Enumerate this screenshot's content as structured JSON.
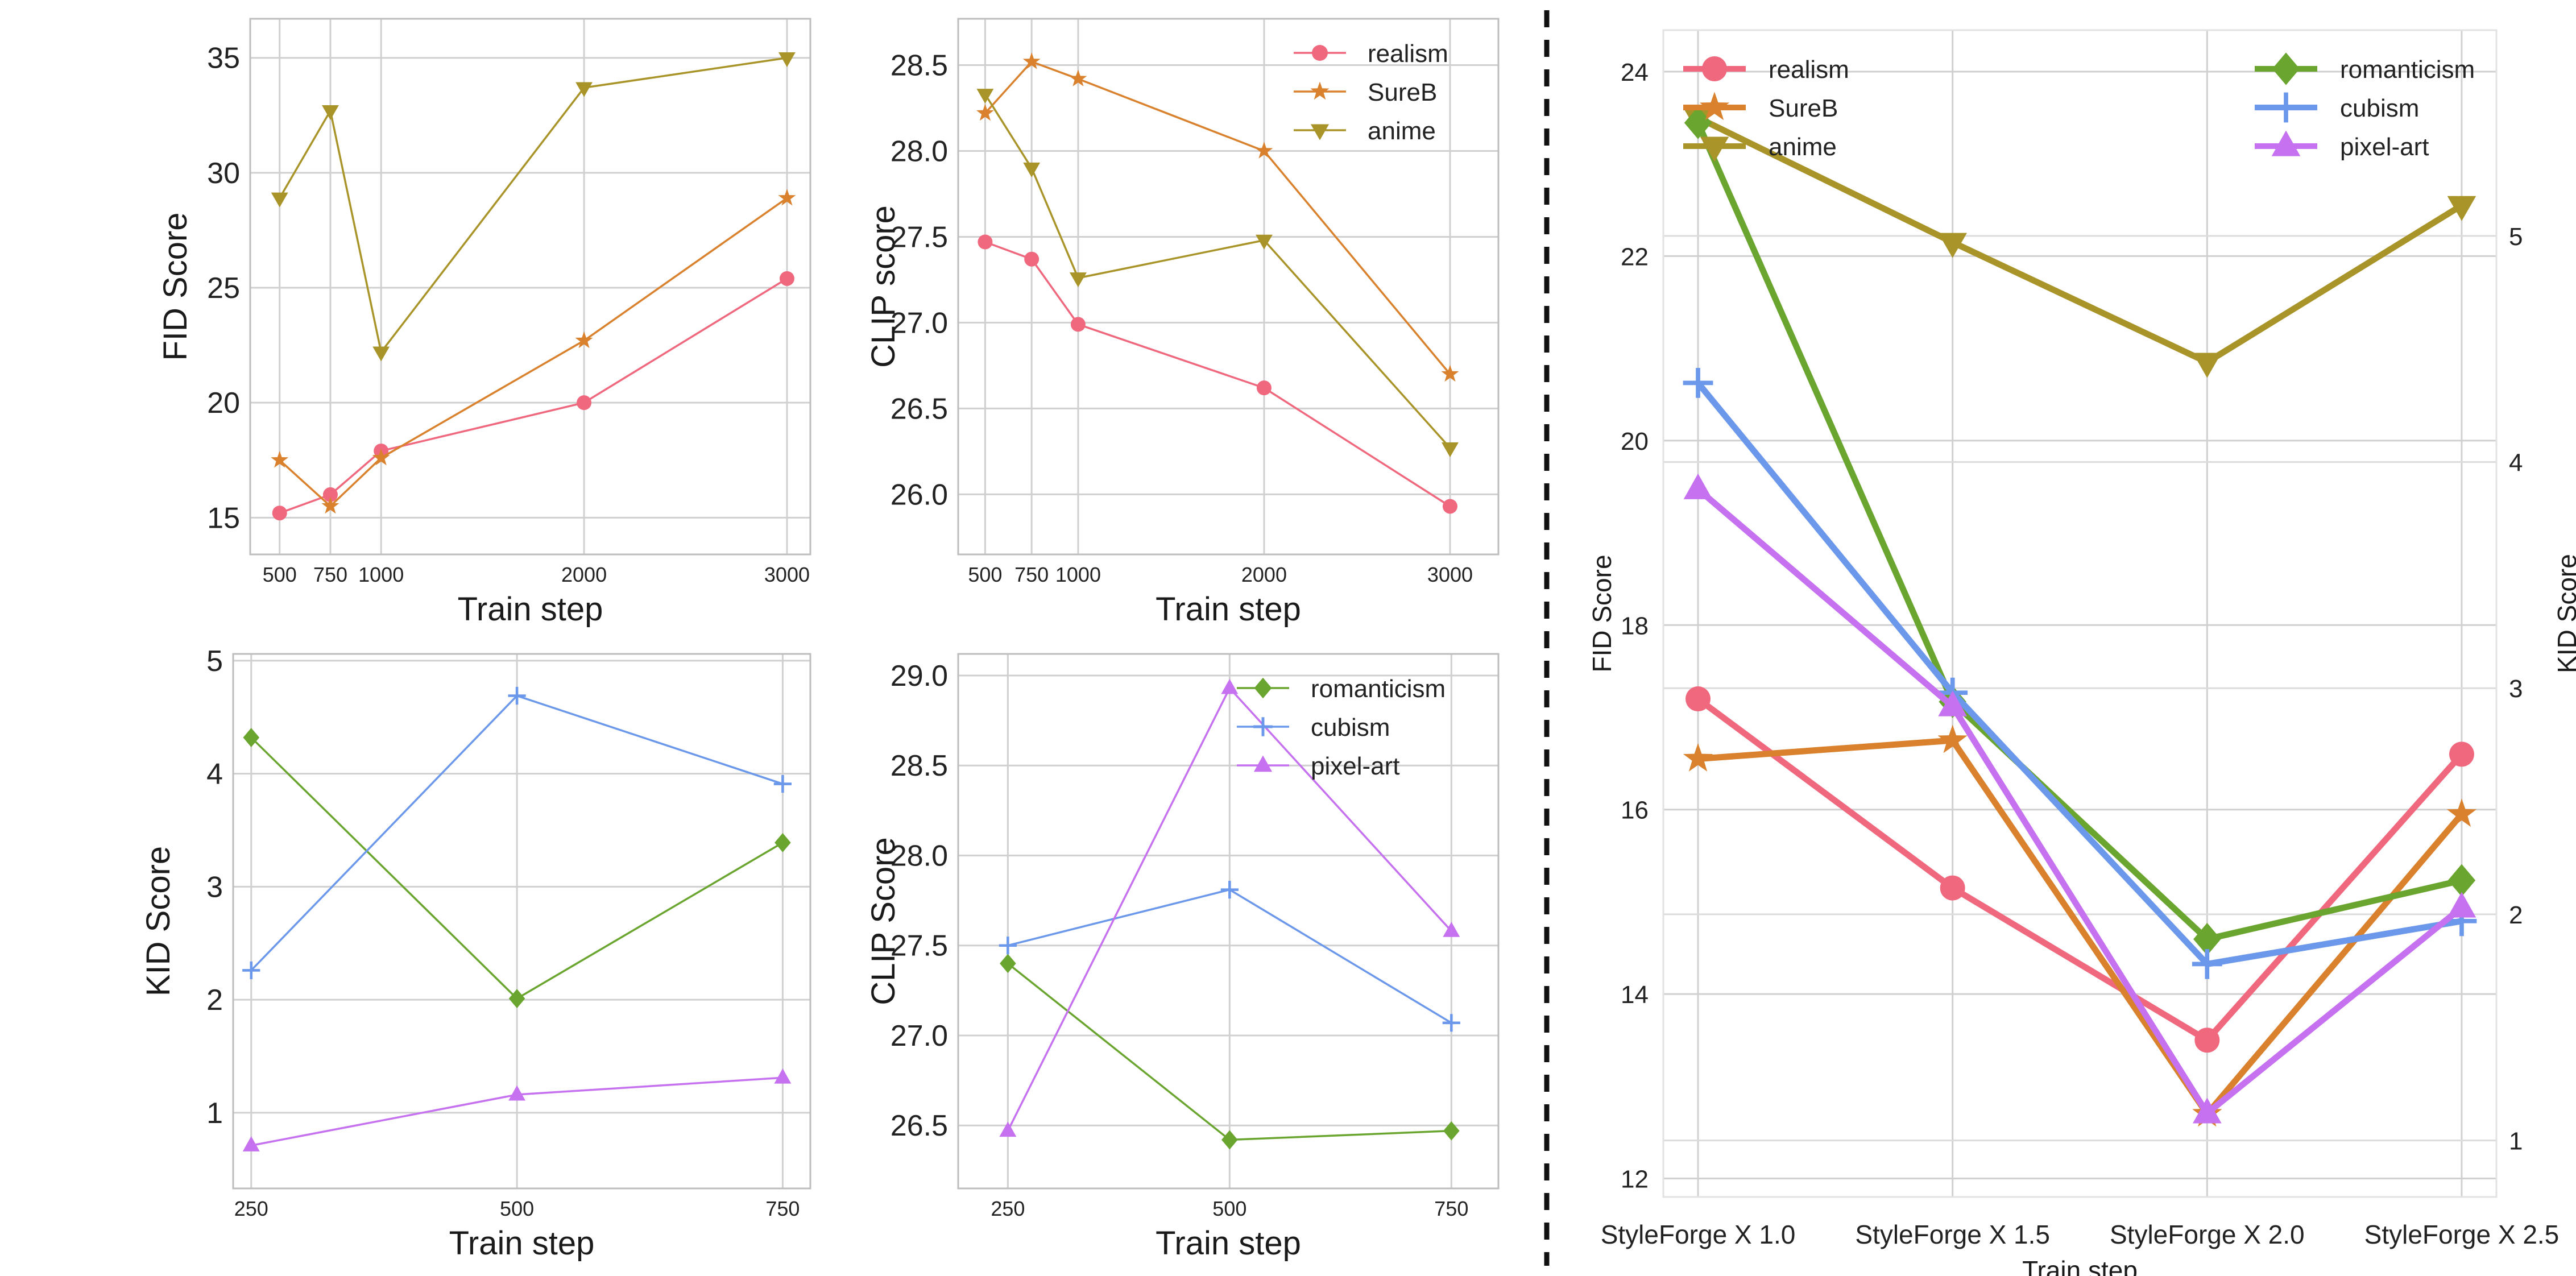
{
  "chart_data": [
    {
      "id": "fid-styles",
      "type": "line",
      "title": "",
      "xlabel": "Train step",
      "ylabel": "FID Score",
      "x": [
        500,
        750,
        1000,
        2000,
        3000
      ],
      "xticks": [
        500,
        750,
        1000,
        2000,
        3000
      ],
      "xtick_labels": [
        "500",
        "750",
        "1000",
        "2000",
        "3000"
      ],
      "yticks": [
        15,
        20,
        25,
        30,
        35
      ],
      "ylim": [
        13.4,
        36.7
      ],
      "xlim": [
        355,
        3115
      ],
      "legend": "none",
      "series": [
        {
          "name": "realism",
          "color": "#f0687e",
          "marker": "circle",
          "values": [
            15.2,
            16.0,
            17.9,
            20.0,
            25.4
          ]
        },
        {
          "name": "SureB",
          "color": "#d9812d",
          "marker": "star",
          "values": [
            17.5,
            15.5,
            17.6,
            22.7,
            28.9
          ]
        },
        {
          "name": "anime",
          "color": "#a89428",
          "marker": "tri-down",
          "values": [
            28.9,
            32.7,
            22.2,
            33.7,
            35.0
          ]
        }
      ]
    },
    {
      "id": "clip-styles",
      "type": "line",
      "title": "",
      "xlabel": "Train step",
      "ylabel": "CLIP score",
      "x": [
        500,
        750,
        1000,
        2000,
        3000
      ],
      "xticks": [
        500,
        750,
        1000,
        2000,
        3000
      ],
      "xtick_labels": [
        "500",
        "750",
        "1000",
        "2000",
        "3000"
      ],
      "yticks": [
        26.0,
        26.5,
        27.0,
        27.5,
        28.0,
        28.5
      ],
      "ytick_labels": [
        "26.0",
        "26.5",
        "27.0",
        "27.5",
        "28.0",
        "28.5"
      ],
      "ylim": [
        25.65,
        28.77
      ],
      "xlim": [
        355,
        3260
      ],
      "legend": "top-right",
      "series": [
        {
          "name": "realism",
          "color": "#f0687e",
          "marker": "circle",
          "values": [
            27.47,
            27.37,
            26.99,
            26.62,
            25.93
          ]
        },
        {
          "name": "SureB",
          "color": "#d9812d",
          "marker": "star",
          "values": [
            28.22,
            28.52,
            28.42,
            28.0,
            26.7
          ]
        },
        {
          "name": "anime",
          "color": "#a89428",
          "marker": "tri-down",
          "values": [
            28.33,
            27.9,
            27.26,
            27.48,
            26.27
          ]
        }
      ]
    },
    {
      "id": "kid-art",
      "type": "line",
      "title": "",
      "xlabel": "Train step",
      "ylabel": "KID Score",
      "x": [
        250,
        500,
        750
      ],
      "xticks": [
        250,
        500,
        750
      ],
      "xtick_labels": [
        "250",
        "500",
        "750"
      ],
      "yticks": [
        1,
        2,
        3,
        4,
        5
      ],
      "ylim": [
        0.33,
        5.06
      ],
      "xlim": [
        233,
        776
      ],
      "legend": "none",
      "series": [
        {
          "name": "romanticism",
          "color": "#6aa52f",
          "marker": "diamond",
          "values": [
            4.32,
            2.01,
            3.39
          ]
        },
        {
          "name": "cubism",
          "color": "#6b98ea",
          "marker": "plus",
          "values": [
            2.26,
            4.69,
            3.91
          ]
        },
        {
          "name": "pixel-art",
          "color": "#c671f0",
          "marker": "tri-up",
          "values": [
            0.71,
            1.16,
            1.31
          ]
        }
      ]
    },
    {
      "id": "clip-art",
      "type": "line",
      "title": "",
      "xlabel": "Train step",
      "ylabel": "CLIP Score",
      "x": [
        250,
        500,
        750
      ],
      "xticks": [
        250,
        500,
        750
      ],
      "xtick_labels": [
        "250",
        "500",
        "750"
      ],
      "yticks": [
        26.5,
        27.0,
        27.5,
        28.0,
        28.5,
        29.0
      ],
      "ytick_labels": [
        "26.5",
        "27.0",
        "27.5",
        "28.0",
        "28.5",
        "29.0"
      ],
      "ylim": [
        26.15,
        29.12
      ],
      "xlim": [
        194,
        803
      ],
      "legend": "top-right",
      "series": [
        {
          "name": "romanticism",
          "color": "#6aa52f",
          "marker": "diamond",
          "values": [
            27.4,
            26.42,
            26.47
          ]
        },
        {
          "name": "cubism",
          "color": "#6b98ea",
          "marker": "plus",
          "values": [
            27.5,
            27.81,
            27.07
          ]
        },
        {
          "name": "pixel-art",
          "color": "#c671f0",
          "marker": "tri-up",
          "values": [
            26.47,
            28.93,
            27.58
          ]
        }
      ]
    },
    {
      "id": "styleforge",
      "type": "line",
      "title": "",
      "xlabel": "Train step",
      "ylabel": "FID Score",
      "ylabel_right": "KID Score",
      "categories": [
        "StyleForge X 1.0",
        "StyleForge X 1.5",
        "StyleForge X 2.0",
        "StyleForge X 2.5"
      ],
      "yticks": [
        12,
        14,
        16,
        18,
        20,
        22,
        24
      ],
      "ylim": [
        11.8,
        24.45
      ],
      "yticks_right": [
        1,
        2,
        3,
        4,
        5
      ],
      "ylim_right": [
        0.75,
        5.91
      ],
      "legend": "top",
      "series": [
        {
          "name": "realism",
          "color": "#f0687e",
          "marker": "circle",
          "axis": "left",
          "values": [
            17.2,
            15.15,
            13.5,
            16.6
          ]
        },
        {
          "name": "SureB",
          "color": "#d9812d",
          "marker": "star",
          "axis": "left",
          "values": [
            16.55,
            16.75,
            12.7,
            15.95
          ]
        },
        {
          "name": "anime",
          "color": "#a89428",
          "marker": "tri-down",
          "axis": "left",
          "values": [
            23.5,
            22.15,
            20.85,
            22.55
          ]
        },
        {
          "name": "romanticism",
          "color": "#6aa52f",
          "marker": "diamond",
          "axis": "right",
          "values": [
            5.5,
            2.94,
            1.89,
            2.15
          ]
        },
        {
          "name": "cubism",
          "color": "#6b98ea",
          "marker": "plus",
          "axis": "right",
          "values": [
            4.35,
            2.98,
            1.78,
            1.97
          ]
        },
        {
          "name": "pixel-art",
          "color": "#c671f0",
          "marker": "tri-up",
          "axis": "right",
          "values": [
            3.88,
            2.92,
            1.12,
            2.03
          ]
        }
      ]
    }
  ]
}
